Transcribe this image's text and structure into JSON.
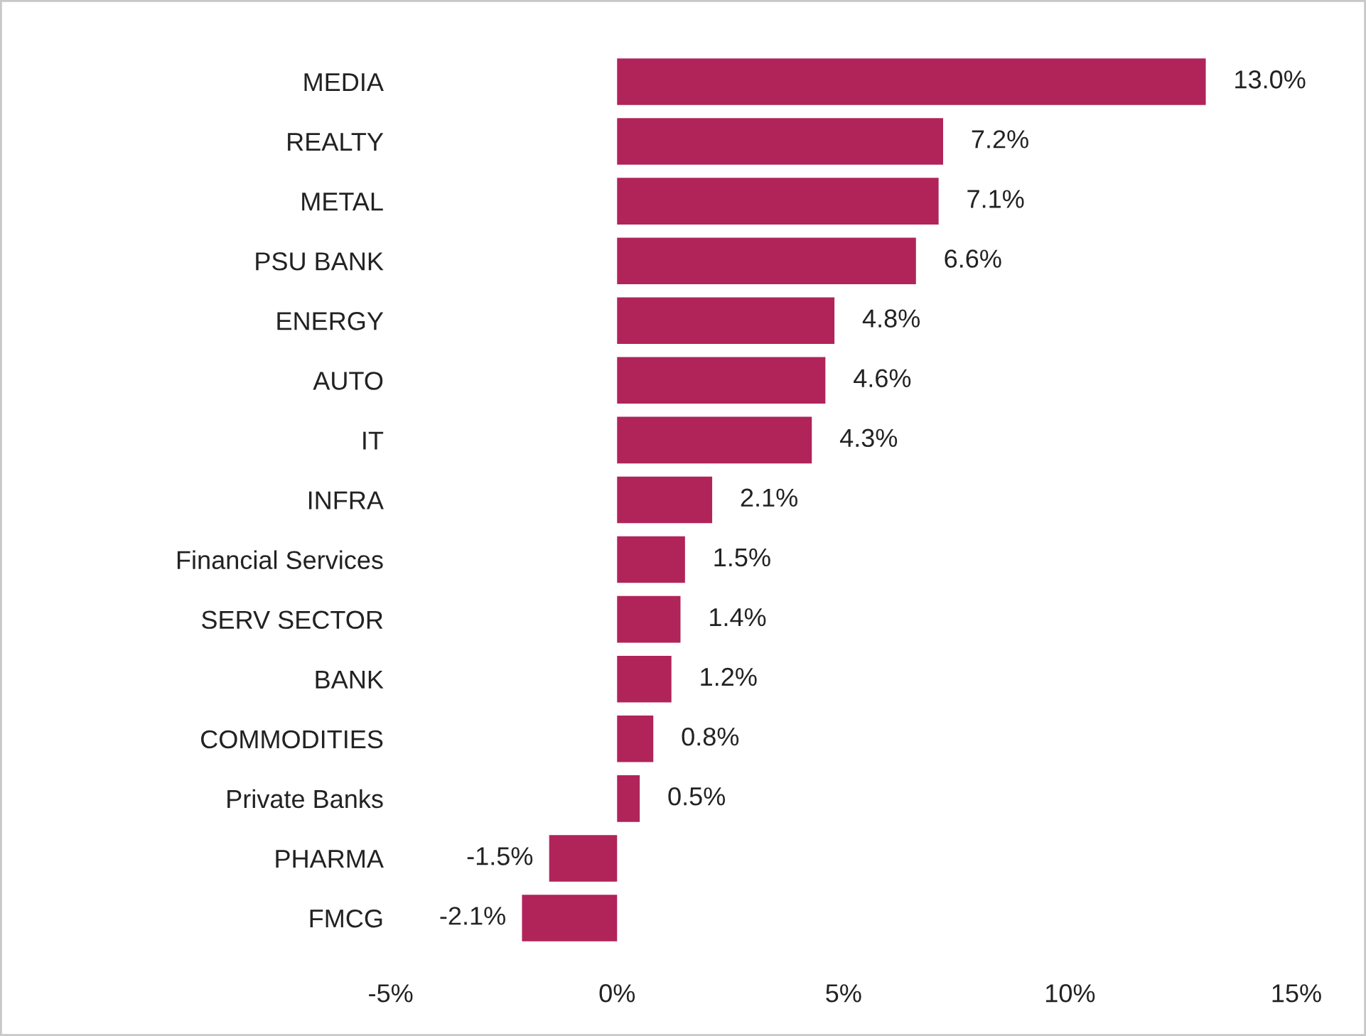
{
  "chart_data": {
    "type": "bar",
    "orientation": "horizontal",
    "categories": [
      "MEDIA",
      "REALTY",
      "METAL",
      "PSU BANK",
      "ENERGY",
      "AUTO",
      "IT",
      "INFRA",
      "Financial Services",
      "SERV SECTOR",
      "BANK",
      "COMMODITIES",
      "Private Banks",
      "PHARMA",
      "FMCG"
    ],
    "values": [
      13.0,
      7.2,
      7.1,
      6.6,
      4.8,
      4.6,
      4.3,
      2.1,
      1.5,
      1.4,
      1.2,
      0.8,
      0.5,
      -1.5,
      -2.1
    ],
    "value_labels": [
      "13.0%",
      "7.2%",
      "7.1%",
      "6.6%",
      "4.8%",
      "4.6%",
      "4.3%",
      "2.1%",
      "1.5%",
      "1.4%",
      "1.2%",
      "0.8%",
      "0.5%",
      "-1.5%",
      "-2.1%"
    ],
    "color": "#b0245a",
    "xlim": [
      -5,
      15
    ],
    "xticks": [
      {
        "value": -5,
        "label": "-5%"
      },
      {
        "value": 0,
        "label": "0%"
      },
      {
        "value": 5,
        "label": "5%"
      },
      {
        "value": 10,
        "label": "10%"
      },
      {
        "value": 15,
        "label": "15%"
      }
    ],
    "grid": false,
    "legend": false
  }
}
